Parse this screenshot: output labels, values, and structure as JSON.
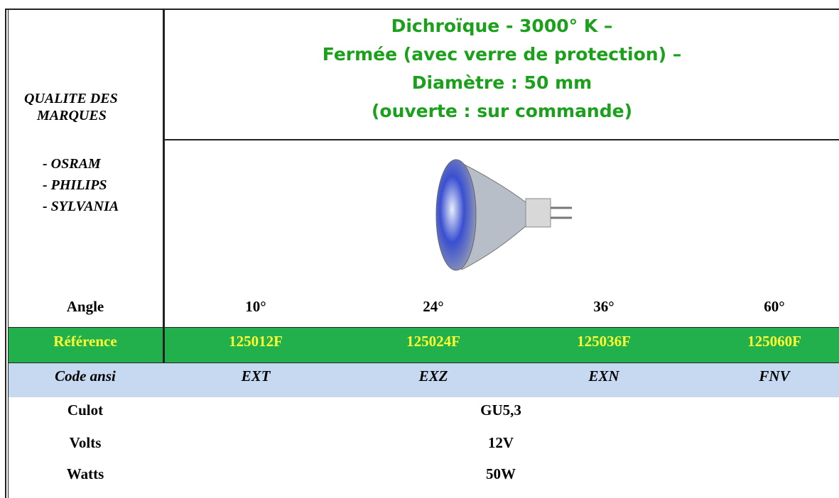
{
  "left": {
    "title": [
      "QUALITE DES",
      "MARQUES"
    ],
    "brands": [
      "- OSRAM",
      "- PHILIPS",
      "- SYLVANIA"
    ]
  },
  "header": {
    "lines": [
      "Dichroïque - 3000° K –",
      "Fermée (avec verre de protection) –",
      "Diamètre : 50 mm",
      "(ouverte : sur commande)"
    ]
  },
  "table": {
    "rows": [
      [
        "Angle",
        "10°",
        "24°",
        "36°",
        "60°"
      ],
      [
        "Référence",
        "125012F",
        "125024F",
        "125036F",
        "125060F"
      ],
      [
        "Code ansi",
        "EXT",
        "EXZ",
        "EXN",
        "FNV"
      ],
      [
        "Culot",
        "GU5,3"
      ],
      [
        "Volts",
        "12V"
      ],
      [
        "Watts",
        "50W"
      ]
    ]
  }
}
